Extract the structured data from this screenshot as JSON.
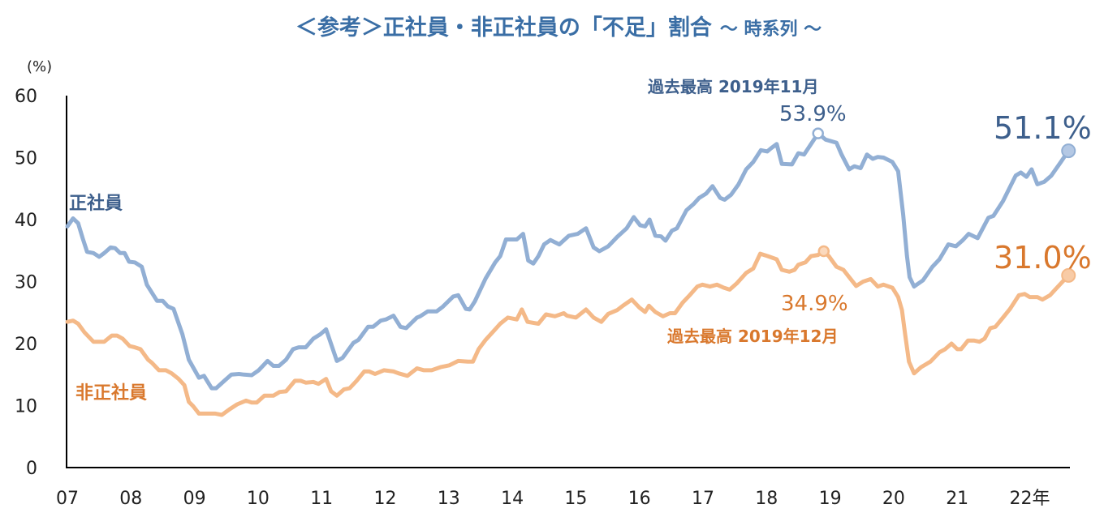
{
  "title": {
    "main": "＜参考＞正社員・非正社員の「不足」割合",
    "sub": "～ 時系列 ～"
  },
  "colors": {
    "title": "#3a6ea5",
    "regular_line": "#92afd4",
    "regular_text": "#3d5f8c",
    "nonregular_line": "#f4b988",
    "nonregular_text": "#d9782d"
  },
  "chart_data": {
    "type": "line",
    "ylabel": "(%)",
    "ylim": [
      0,
      60
    ],
    "yticks": [
      0,
      10,
      20,
      30,
      40,
      50,
      60
    ],
    "xlim": [
      2007,
      2022.75
    ],
    "xtick_labels": [
      "07",
      "08",
      "09",
      "10",
      "11",
      "12",
      "13",
      "14",
      "15",
      "16",
      "17",
      "18",
      "19",
      "20",
      "21",
      "22年"
    ],
    "grid": false,
    "series": [
      {
        "name": "正社員",
        "points": [
          [
            2007.0,
            38.9
          ],
          [
            2007.09,
            40.2
          ],
          [
            2007.17,
            39.4
          ],
          [
            2007.24,
            37
          ],
          [
            2007.31,
            34.8
          ],
          [
            2007.41,
            34.6
          ],
          [
            2007.5,
            34
          ],
          [
            2007.58,
            34.6
          ],
          [
            2007.68,
            35.5
          ],
          [
            2007.75,
            35.4
          ],
          [
            2007.83,
            34.6
          ],
          [
            2007.9,
            34.6
          ],
          [
            2007.97,
            33.2
          ],
          [
            2008.06,
            33.1
          ],
          [
            2008.17,
            32.4
          ],
          [
            2008.25,
            29.5
          ],
          [
            2008.41,
            26.9
          ],
          [
            2008.5,
            26.9
          ],
          [
            2008.58,
            26
          ],
          [
            2008.67,
            25.6
          ],
          [
            2008.81,
            21.5
          ],
          [
            2008.91,
            17.4
          ],
          [
            2009.07,
            14.5
          ],
          [
            2009.15,
            14.8
          ],
          [
            2009.27,
            12.8
          ],
          [
            2009.34,
            12.8
          ],
          [
            2009.47,
            14
          ],
          [
            2009.58,
            15
          ],
          [
            2009.7,
            15.1
          ],
          [
            2009.78,
            15
          ],
          [
            2009.9,
            14.9
          ],
          [
            2010.01,
            15.7
          ],
          [
            2010.15,
            17.2
          ],
          [
            2010.24,
            16.4
          ],
          [
            2010.33,
            16.4
          ],
          [
            2010.44,
            17.4
          ],
          [
            2010.55,
            19.1
          ],
          [
            2010.64,
            19.4
          ],
          [
            2010.75,
            19.4
          ],
          [
            2010.87,
            20.8
          ],
          [
            2010.98,
            21.5
          ],
          [
            2011.07,
            22.3
          ],
          [
            2011.24,
            17.2
          ],
          [
            2011.33,
            17.7
          ],
          [
            2011.5,
            20.1
          ],
          [
            2011.58,
            20.6
          ],
          [
            2011.73,
            22.7
          ],
          [
            2011.81,
            22.7
          ],
          [
            2011.93,
            23.7
          ],
          [
            2012.01,
            23.9
          ],
          [
            2012.13,
            24.5
          ],
          [
            2012.24,
            22.7
          ],
          [
            2012.33,
            22.5
          ],
          [
            2012.5,
            24.2
          ],
          [
            2012.55,
            24.4
          ],
          [
            2012.67,
            25.2
          ],
          [
            2012.81,
            25.2
          ],
          [
            2012.9,
            25.9
          ],
          [
            2013.07,
            27.6
          ],
          [
            2013.15,
            27.8
          ],
          [
            2013.27,
            25.6
          ],
          [
            2013.33,
            25.5
          ],
          [
            2013.41,
            26.8
          ],
          [
            2013.58,
            30.5
          ],
          [
            2013.73,
            33.1
          ],
          [
            2013.81,
            34.1
          ],
          [
            2013.9,
            36.8
          ],
          [
            2014.07,
            36.8
          ],
          [
            2014.17,
            37.7
          ],
          [
            2014.25,
            33.4
          ],
          [
            2014.33,
            32.9
          ],
          [
            2014.41,
            34.1
          ],
          [
            2014.5,
            36
          ],
          [
            2014.6,
            36.7
          ],
          [
            2014.74,
            36.0
          ],
          [
            2014.89,
            37.4
          ],
          [
            2015.03,
            37.7
          ],
          [
            2015.16,
            38.6
          ],
          [
            2015.28,
            35.5
          ],
          [
            2015.37,
            34.9
          ],
          [
            2015.51,
            35.7
          ],
          [
            2015.65,
            37.2
          ],
          [
            2015.8,
            38.6
          ],
          [
            2015.91,
            40.4
          ],
          [
            2016.01,
            39.1
          ],
          [
            2016.09,
            38.9
          ],
          [
            2016.16,
            40.0
          ],
          [
            2016.25,
            37.4
          ],
          [
            2016.34,
            37.3
          ],
          [
            2016.41,
            36.6
          ],
          [
            2016.51,
            38.2
          ],
          [
            2016.59,
            38.6
          ],
          [
            2016.74,
            41.5
          ],
          [
            2016.85,
            42.5
          ],
          [
            2016.94,
            43.5
          ],
          [
            2017.05,
            44.2
          ],
          [
            2017.15,
            45.4
          ],
          [
            2017.27,
            43.5
          ],
          [
            2017.34,
            43.2
          ],
          [
            2017.44,
            44.0
          ],
          [
            2017.56,
            45.7
          ],
          [
            2017.68,
            48.1
          ],
          [
            2017.79,
            49.3
          ],
          [
            2017.91,
            51.2
          ],
          [
            2018.01,
            51.0
          ],
          [
            2018.07,
            51.5
          ],
          [
            2018.16,
            52.2
          ],
          [
            2018.24,
            49.0
          ],
          [
            2018.4,
            48.9
          ],
          [
            2018.5,
            50.7
          ],
          [
            2018.59,
            50.5
          ],
          [
            2018.7,
            52.2
          ],
          [
            2018.81,
            53.9
          ],
          [
            2018.93,
            52.9
          ],
          [
            2019.1,
            52.4
          ],
          [
            2019.18,
            50.5
          ],
          [
            2019.3,
            48.1
          ],
          [
            2019.38,
            48.6
          ],
          [
            2019.48,
            48.3
          ],
          [
            2019.58,
            50.5
          ],
          [
            2019.67,
            49.8
          ],
          [
            2019.75,
            50.1
          ],
          [
            2019.84,
            50.0
          ],
          [
            2019.98,
            49.3
          ],
          [
            2020.07,
            47.8
          ],
          [
            2020.15,
            40.8
          ],
          [
            2020.21,
            34.1
          ],
          [
            2020.25,
            30.7
          ],
          [
            2020.32,
            29.2
          ],
          [
            2020.46,
            30.2
          ],
          [
            2020.61,
            32.4
          ],
          [
            2020.72,
            33.6
          ],
          [
            2020.86,
            36.0
          ],
          [
            2020.98,
            35.7
          ],
          [
            2021.09,
            36.7
          ],
          [
            2021.18,
            37.7
          ],
          [
            2021.32,
            37.0
          ],
          [
            2021.49,
            40.3
          ],
          [
            2021.57,
            40.6
          ],
          [
            2021.72,
            43.0
          ],
          [
            2021.92,
            47.1
          ],
          [
            2022.0,
            47.6
          ],
          [
            2022.09,
            46.9
          ],
          [
            2022.17,
            48.1
          ],
          [
            2022.26,
            45.7
          ],
          [
            2022.37,
            46.1
          ],
          [
            2022.48,
            47.1
          ],
          [
            2022.63,
            49.3
          ],
          [
            2022.75,
            51.1
          ]
        ]
      },
      {
        "name": "非正社員",
        "points": [
          [
            2007.0,
            23.5
          ],
          [
            2007.09,
            23.7
          ],
          [
            2007.17,
            23.2
          ],
          [
            2007.27,
            21.8
          ],
          [
            2007.41,
            20.3
          ],
          [
            2007.5,
            20.3
          ],
          [
            2007.58,
            20.3
          ],
          [
            2007.7,
            21.3
          ],
          [
            2007.78,
            21.3
          ],
          [
            2007.87,
            20.8
          ],
          [
            2007.98,
            19.6
          ],
          [
            2008.06,
            19.4
          ],
          [
            2008.15,
            19.1
          ],
          [
            2008.27,
            17.4
          ],
          [
            2008.33,
            16.9
          ],
          [
            2008.44,
            15.7
          ],
          [
            2008.55,
            15.7
          ],
          [
            2008.64,
            15.2
          ],
          [
            2008.75,
            14.3
          ],
          [
            2008.84,
            13.3
          ],
          [
            2008.91,
            10.6
          ],
          [
            2008.98,
            9.9
          ],
          [
            2009.07,
            8.7
          ],
          [
            2009.21,
            8.7
          ],
          [
            2009.33,
            8.7
          ],
          [
            2009.43,
            8.5
          ],
          [
            2009.55,
            9.4
          ],
          [
            2009.67,
            10.2
          ],
          [
            2009.81,
            10.8
          ],
          [
            2009.9,
            10.5
          ],
          [
            2009.98,
            10.5
          ],
          [
            2010.1,
            11.6
          ],
          [
            2010.24,
            11.6
          ],
          [
            2010.34,
            12.2
          ],
          [
            2010.44,
            12.3
          ],
          [
            2010.58,
            14.0
          ],
          [
            2010.67,
            14.0
          ],
          [
            2010.75,
            13.7
          ],
          [
            2010.87,
            13.8
          ],
          [
            2010.95,
            13.5
          ],
          [
            2011.07,
            14.3
          ],
          [
            2011.15,
            12.3
          ],
          [
            2011.24,
            11.6
          ],
          [
            2011.35,
            12.6
          ],
          [
            2011.44,
            12.8
          ],
          [
            2011.55,
            14.0
          ],
          [
            2011.67,
            15.5
          ],
          [
            2011.75,
            15.5
          ],
          [
            2011.84,
            15.1
          ],
          [
            2011.98,
            15.7
          ],
          [
            2012.13,
            15.5
          ],
          [
            2012.21,
            15.2
          ],
          [
            2012.35,
            14.8
          ],
          [
            2012.5,
            16.0
          ],
          [
            2012.61,
            15.7
          ],
          [
            2012.73,
            15.7
          ],
          [
            2012.87,
            16.2
          ],
          [
            2013.01,
            16.5
          ],
          [
            2013.15,
            17.2
          ],
          [
            2013.3,
            17.1
          ],
          [
            2013.38,
            17.1
          ],
          [
            2013.47,
            19.1
          ],
          [
            2013.58,
            20.6
          ],
          [
            2013.73,
            22.3
          ],
          [
            2013.81,
            23.2
          ],
          [
            2013.93,
            24.2
          ],
          [
            2014.07,
            23.9
          ],
          [
            2014.15,
            25.5
          ],
          [
            2014.24,
            23.5
          ],
          [
            2014.41,
            23.2
          ],
          [
            2014.53,
            24.7
          ],
          [
            2014.67,
            24.4
          ],
          [
            2014.81,
            24.9
          ],
          [
            2014.86,
            24.5
          ],
          [
            2015.0,
            24.2
          ],
          [
            2015.16,
            25.5
          ],
          [
            2015.28,
            24.2
          ],
          [
            2015.4,
            23.5
          ],
          [
            2015.51,
            24.8
          ],
          [
            2015.65,
            25.4
          ],
          [
            2015.74,
            26.1
          ],
          [
            2015.88,
            27.1
          ],
          [
            2016.0,
            25.8
          ],
          [
            2016.09,
            25.1
          ],
          [
            2016.15,
            26.1
          ],
          [
            2016.25,
            25.1
          ],
          [
            2016.37,
            24.4
          ],
          [
            2016.48,
            24.9
          ],
          [
            2016.56,
            24.9
          ],
          [
            2016.68,
            26.6
          ],
          [
            2016.79,
            27.8
          ],
          [
            2016.91,
            29.2
          ],
          [
            2016.99,
            29.5
          ],
          [
            2017.11,
            29.2
          ],
          [
            2017.22,
            29.5
          ],
          [
            2017.33,
            29.0
          ],
          [
            2017.42,
            28.7
          ],
          [
            2017.53,
            29.7
          ],
          [
            2017.68,
            31.4
          ],
          [
            2017.79,
            32.1
          ],
          [
            2017.9,
            34.5
          ],
          [
            2018.02,
            34.1
          ],
          [
            2018.16,
            33.6
          ],
          [
            2018.24,
            31.9
          ],
          [
            2018.36,
            31.6
          ],
          [
            2018.44,
            31.9
          ],
          [
            2018.5,
            32.7
          ],
          [
            2018.61,
            33.1
          ],
          [
            2018.7,
            34.1
          ],
          [
            2018.81,
            34.3
          ],
          [
            2018.9,
            34.9
          ],
          [
            2018.98,
            34.1
          ],
          [
            2019.1,
            32.4
          ],
          [
            2019.21,
            31.9
          ],
          [
            2019.3,
            30.7
          ],
          [
            2019.41,
            29.3
          ],
          [
            2019.52,
            30.0
          ],
          [
            2019.64,
            30.4
          ],
          [
            2019.75,
            29.2
          ],
          [
            2019.84,
            29.5
          ],
          [
            2019.98,
            29.0
          ],
          [
            2020.07,
            27.5
          ],
          [
            2020.13,
            25.4
          ],
          [
            2020.18,
            21.5
          ],
          [
            2020.24,
            17.1
          ],
          [
            2020.32,
            15.2
          ],
          [
            2020.43,
            16.2
          ],
          [
            2020.58,
            17.1
          ],
          [
            2020.72,
            18.6
          ],
          [
            2020.81,
            19.1
          ],
          [
            2020.91,
            20.0
          ],
          [
            2021.0,
            19.1
          ],
          [
            2021.06,
            19.1
          ],
          [
            2021.17,
            20.5
          ],
          [
            2021.26,
            20.5
          ],
          [
            2021.35,
            20.3
          ],
          [
            2021.43,
            20.8
          ],
          [
            2021.52,
            22.5
          ],
          [
            2021.6,
            22.7
          ],
          [
            2021.72,
            24.2
          ],
          [
            2021.83,
            25.6
          ],
          [
            2021.97,
            27.8
          ],
          [
            2022.06,
            28.0
          ],
          [
            2022.14,
            27.5
          ],
          [
            2022.26,
            27.5
          ],
          [
            2022.34,
            27.1
          ],
          [
            2022.46,
            27.8
          ],
          [
            2022.54,
            28.7
          ],
          [
            2022.75,
            31.0
          ]
        ]
      }
    ],
    "annotations": {
      "regular_peak_label": "過去最高 2019年11月",
      "regular_peak_value": "53.9%",
      "regular_latest_value": "51.1%",
      "nonregular_peak_label": "過去最高 2019年12月",
      "nonregular_peak_value": "34.9%",
      "nonregular_latest_value": "31.0%"
    }
  }
}
